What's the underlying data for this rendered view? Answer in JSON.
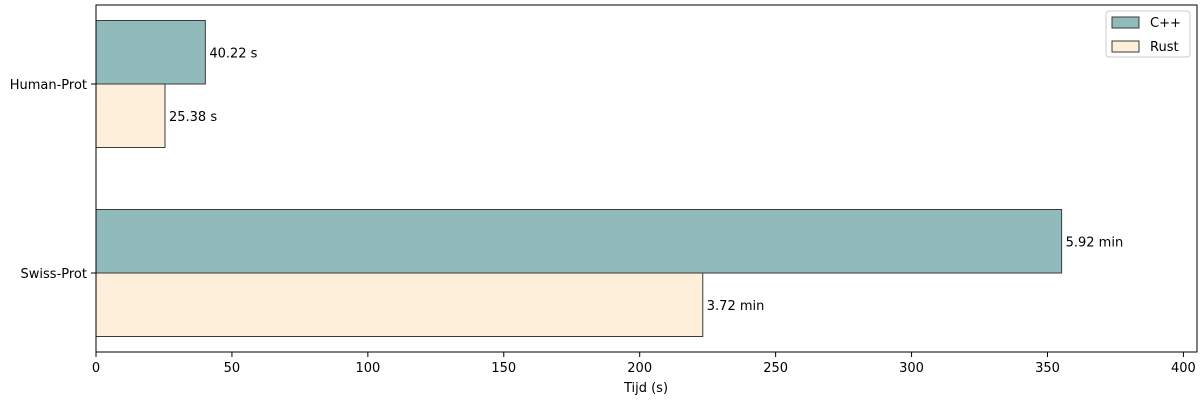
{
  "chart_data": {
    "type": "bar",
    "orientation": "horizontal",
    "categories": [
      "Human-Prot",
      "Swiss-Prot"
    ],
    "series": [
      {
        "name": "C++",
        "values": [
          40.22,
          355.2
        ],
        "labels": [
          "40.22 s",
          "5.92 min"
        ],
        "color": "#91babb"
      },
      {
        "name": "Rust",
        "values": [
          25.38,
          223.2
        ],
        "labels": [
          "25.38 s",
          "3.72 min"
        ],
        "color": "#feefdb"
      }
    ],
    "xlabel": "Tijd (s)",
    "ylabel": "",
    "xlim": [
      0,
      405
    ],
    "xticks": [
      0,
      50,
      100,
      150,
      200,
      250,
      300,
      350,
      400
    ],
    "grid": false,
    "legend": "top-right",
    "edge_color": "#3a3a3a"
  }
}
